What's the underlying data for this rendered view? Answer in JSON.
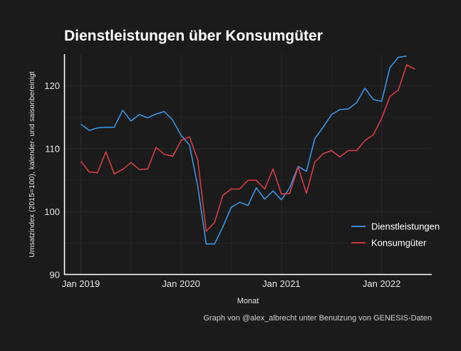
{
  "chart_data": {
    "type": "line",
    "title": "Dienstleistungen über Konsumgüter",
    "xlabel": "Monat",
    "ylabel": "Umsatzindex (2015=100), kalender- und saisonbereinigt",
    "caption": "Graph von @alex_albrecht unter Benutzung von GENESIS-Daten",
    "x_start": "2019-01",
    "x_ticks": [
      {
        "month_index": 0,
        "label": "Jan 2019"
      },
      {
        "month_index": 12,
        "label": "Jan 2020"
      },
      {
        "month_index": 24,
        "label": "Jan 2021"
      },
      {
        "month_index": 36,
        "label": "Jan 2022"
      }
    ],
    "xlim_months": [
      -2,
      42
    ],
    "ylim": [
      90,
      125
    ],
    "y_ticks": [
      90,
      100,
      110,
      120
    ],
    "grid": true,
    "legend_position": "bottom-right",
    "series": [
      {
        "name": "Dienstleistungen",
        "color": "#3a9bf0",
        "values": [
          113.9,
          112.9,
          113.3,
          113.4,
          113.4,
          116.1,
          114.4,
          115.4,
          114.9,
          115.5,
          115.9,
          114.5,
          112.1,
          110.6,
          104.0,
          94.9,
          94.9,
          97.6,
          100.7,
          101.5,
          101.0,
          103.8,
          102.0,
          103.3,
          101.9,
          103.8,
          107.2,
          106.4,
          111.6,
          113.4,
          115.4,
          116.2,
          116.3,
          117.3,
          119.6,
          117.8,
          117.5,
          122.9,
          124.5,
          124.7
        ]
      },
      {
        "name": "Konsumgüter",
        "color": "#e13c48",
        "values": [
          108.0,
          106.3,
          106.2,
          109.5,
          106.0,
          106.7,
          107.8,
          106.7,
          106.8,
          110.2,
          109.1,
          108.8,
          111.3,
          111.9,
          108.2,
          96.9,
          98.3,
          102.6,
          103.6,
          103.6,
          105.0,
          105.0,
          103.6,
          106.8,
          102.8,
          102.9,
          107.1,
          102.9,
          107.9,
          109.2,
          109.7,
          108.7,
          109.7,
          109.7,
          111.3,
          112.2,
          114.8,
          118.3,
          119.3,
          123.3,
          122.6
        ]
      }
    ]
  }
}
